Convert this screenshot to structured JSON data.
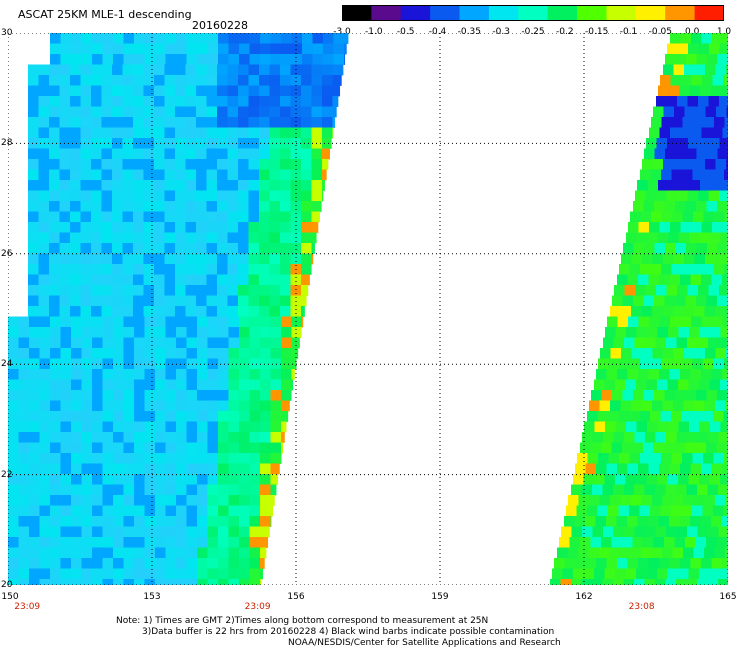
{
  "header": {
    "title": "ASCAT 25KM MLE-1 descending",
    "date": "20160228"
  },
  "colorbar": {
    "tick_labels": [
      "-3.0",
      "-1.0",
      "-0.5",
      "-0.4",
      "-0.35",
      "-0.3",
      "-0.25",
      "-0.2",
      "-0.15",
      "-0.1",
      "-0.05",
      "0.0",
      "1.0"
    ],
    "colors": [
      "#000000",
      "#5a0a8c",
      "#1a14d8",
      "#0a5af0",
      "#00a6ff",
      "#00e6f0",
      "#00ffc0",
      "#00f060",
      "#50ff00",
      "#c8ff00",
      "#fff000",
      "#ff9600",
      "#ff1e00"
    ]
  },
  "map": {
    "lat_labels": [
      "30",
      "28",
      "26",
      "24",
      "22",
      "20"
    ],
    "lon_labels": [
      "150",
      "153",
      "156",
      "159",
      "162",
      "165"
    ],
    "lat_range": [
      20,
      30
    ],
    "lon_range": [
      150,
      165
    ],
    "pass_times": [
      {
        "label": "23:09",
        "lon": 150.4
      },
      {
        "label": "23:09",
        "lon": 155.2
      },
      {
        "label": "23:08",
        "lon": 163.2
      }
    ]
  },
  "footer": {
    "note_line1": "Note: 1) Times are GMT 2)Times along bottom correspond to measurement at 25N",
    "note_line2": "3)Data buffer is 22 hrs from 20160228 4) Black wind barbs indicate possible contamination",
    "credit": "NOAA/NESDIS/Center for Satellite Applications and Research"
  }
}
